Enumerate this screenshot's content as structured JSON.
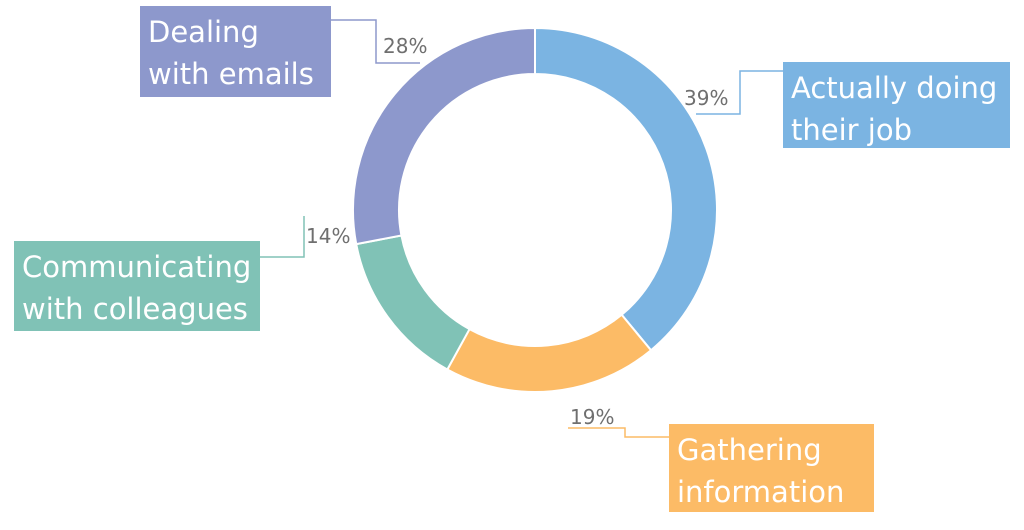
{
  "chart_data": {
    "type": "pie",
    "donut": true,
    "grid": false,
    "slices": [
      {
        "label_lines": [
          "Actually doing",
          "their job"
        ],
        "value": 39,
        "value_label": "39%",
        "color": "#7bb4e2"
      },
      {
        "label_lines": [
          "Gathering",
          "information"
        ],
        "value": 19,
        "value_label": "19%",
        "color": "#fcbb66"
      },
      {
        "label_lines": [
          "Communicating",
          "with colleagues"
        ],
        "value": 14,
        "value_label": "14%",
        "color": "#80c2b6"
      },
      {
        "label_lines": [
          "Dealing",
          "with emails"
        ],
        "value": 28,
        "value_label": "28%",
        "color": "#8d98cc"
      }
    ]
  }
}
